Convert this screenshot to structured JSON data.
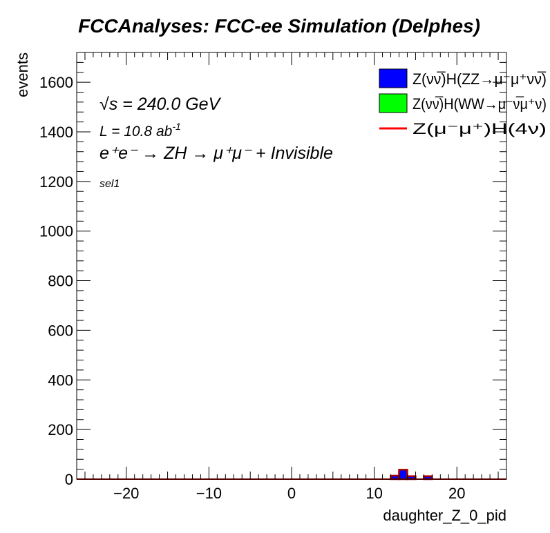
{
  "chart_data": {
    "type": "bar",
    "title": "FCCAnalyses: FCC-ee Simulation (Delphes)",
    "xlabel": "daughter_Z_0_pid",
    "ylabel": "events",
    "xlim": [
      -26,
      26
    ],
    "ylim": [
      0,
      1720
    ],
    "x_ticks": [
      -20,
      -10,
      0,
      10,
      20
    ],
    "x_tick_labels": [
      "−20",
      "−10",
      "0",
      "10",
      "20"
    ],
    "y_ticks": [
      0,
      200,
      400,
      600,
      800,
      1000,
      1200,
      1400,
      1600
    ],
    "y_tick_labels": [
      "0",
      "200",
      "400",
      "600",
      "800",
      "1000",
      "1200",
      "1400",
      "1600"
    ],
    "annotations": {
      "energy_sym": "√s",
      "energy_value": " = 240.0 GeV",
      "lumi": "L = 10.8 ab",
      "lumi_sup": "-1",
      "process": "e⁺e⁻ → ZH → μ⁺μ⁻ + Invisible",
      "selection": "sel1"
    },
    "legend_position": "top-right",
    "series": [
      {
        "name": "Z(νν̅)H(ZZ→μ⁻μ⁺νν̅)",
        "style": "filled",
        "color": "#0000ff",
        "bins": [
          {
            "x_low": 12,
            "x_high": 13,
            "value": 14
          },
          {
            "x_low": 13,
            "x_high": 14,
            "value": 38
          },
          {
            "x_low": 14,
            "x_high": 15,
            "value": 12
          },
          {
            "x_low": 16,
            "x_high": 17,
            "value": 12
          }
        ]
      },
      {
        "name": "Z(νν̅)H(WW→μ⁻ν̅μ⁺ν)",
        "style": "filled",
        "color": "#00ff00",
        "bins": []
      },
      {
        "name": "Z(μ⁻μ⁺)H(4ν)",
        "style": "line",
        "color": "#ff0000",
        "bins": []
      }
    ]
  }
}
